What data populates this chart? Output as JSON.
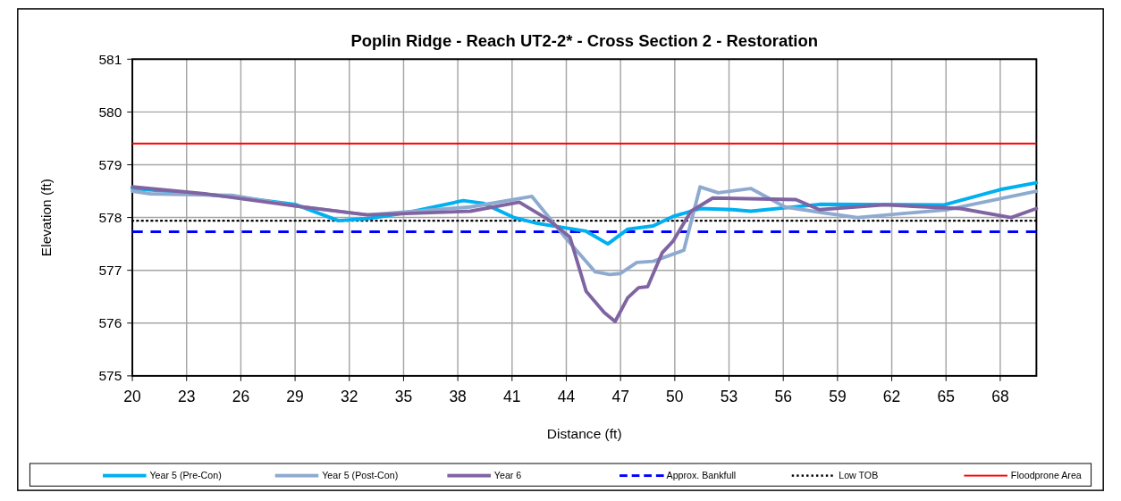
{
  "chart_data": {
    "type": "line",
    "title": "Poplin Ridge - Reach UT2-2* - Cross Section 2 - Restoration",
    "xlabel": "Distance (ft)",
    "ylabel": "Elevation (ft)",
    "xlim": [
      20,
      70
    ],
    "xticks": [
      20,
      23,
      26,
      29,
      32,
      35,
      38,
      41,
      44,
      47,
      50,
      53,
      56,
      59,
      62,
      65,
      68
    ],
    "ylim": [
      575,
      581
    ],
    "yticks": [
      575,
      576,
      577,
      578,
      579,
      580,
      581
    ],
    "grid": true,
    "legend": "bottom",
    "series": [
      {
        "name": "Year 5 (Pre-Con)",
        "color": "#00b0f0",
        "line_style": "solid",
        "x": [
          20,
          23,
          26,
          29,
          31.4,
          33,
          35,
          38.3,
          39.4,
          41.1,
          42.4,
          45.1,
          46.3,
          47.4,
          48.8,
          49.9,
          51.4,
          53.2,
          54.2,
          58,
          64.9,
          68,
          70
        ],
        "values": [
          578.55,
          578.47,
          578.38,
          578.25,
          577.94,
          577.98,
          578.08,
          578.32,
          578.27,
          578,
          577.89,
          577.74,
          577.5,
          577.78,
          577.84,
          578.02,
          578.17,
          578.15,
          578.12,
          578.25,
          578.24,
          578.53,
          578.66
        ]
      },
      {
        "name": "Year 5 (Post-Con)",
        "color": "#8eaad0",
        "line_style": "solid",
        "x": [
          20,
          21,
          25.5,
          29,
          33,
          38.7,
          42.1,
          44,
          45.6,
          46.4,
          47,
          47.9,
          48.8,
          50.5,
          51.4,
          52.4,
          54.2,
          56.1,
          58.2,
          60.1,
          65.1,
          68.2,
          70
        ],
        "values": [
          578.5,
          578.45,
          578.42,
          578.22,
          578.05,
          578.2,
          578.4,
          577.6,
          576.97,
          576.92,
          576.94,
          577.15,
          577.17,
          577.38,
          578.58,
          578.47,
          578.55,
          578.2,
          578.09,
          578,
          578.15,
          578.37,
          578.5
        ]
      },
      {
        "name": "Year 6",
        "color": "#8064a2",
        "line_style": "solid",
        "x": [
          20,
          24,
          29,
          33,
          38.7,
          41.4,
          43,
          44.2,
          45.1,
          46.1,
          46.7,
          47.4,
          48,
          48.5,
          49.3,
          49.9,
          50.9,
          52.1,
          56.7,
          58,
          61.6,
          65.8,
          68.6,
          70
        ],
        "values": [
          578.58,
          578.45,
          578.22,
          578.05,
          578.12,
          578.29,
          577.96,
          577.63,
          576.6,
          576.2,
          576.03,
          576.48,
          576.67,
          576.69,
          577.33,
          577.55,
          578.12,
          578.37,
          578.34,
          578.15,
          578.24,
          578.17,
          578,
          578.17
        ]
      }
    ],
    "ref_lines": [
      {
        "axis": "y",
        "value": 577.73,
        "label": "Approx. Bankfull",
        "color": "#0000ff",
        "line_style": "dashed"
      },
      {
        "axis": "y",
        "value": 577.94,
        "label": "Low TOB",
        "color": "#000000",
        "line_style": "dotted"
      },
      {
        "axis": "y",
        "value": 579.4,
        "label": "Floodprone Area",
        "color": "#ff0000",
        "line_style": "solid"
      }
    ]
  }
}
